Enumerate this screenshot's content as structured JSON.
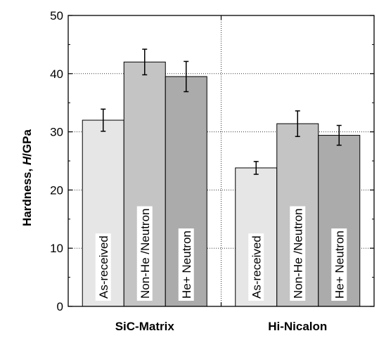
{
  "chart_data": {
    "type": "bar",
    "ylabel_prefix": "Hardness, ",
    "ylabel_italic": "H",
    "ylabel_suffix": "/GPa",
    "ylim": [
      0,
      50
    ],
    "yticks": [
      "0",
      "10",
      "20",
      "30",
      "40",
      "50"
    ],
    "grid": "dotted",
    "groups": [
      {
        "name": "SiC-Matrix",
        "bars": [
          {
            "label": "As-received",
            "value": 32.0,
            "err": 1.9,
            "color": "#e6e6e6"
          },
          {
            "label": "Non-He /Neutron",
            "value": 42.0,
            "err": 2.2,
            "color": "#c4c4c4"
          },
          {
            "label": "He+ Neutron",
            "value": 39.5,
            "err": 2.6,
            "color": "#ababab"
          }
        ]
      },
      {
        "name": "Hi-Nicalon",
        "bars": [
          {
            "label": "As-received",
            "value": 23.8,
            "err": 1.1,
            "color": "#e6e6e6"
          },
          {
            "label": "Non-He /Neutron",
            "value": 31.4,
            "err": 2.2,
            "color": "#c4c4c4"
          },
          {
            "label": "He+ Neutron",
            "value": 29.4,
            "err": 1.7,
            "color": "#ababab"
          }
        ]
      }
    ]
  }
}
